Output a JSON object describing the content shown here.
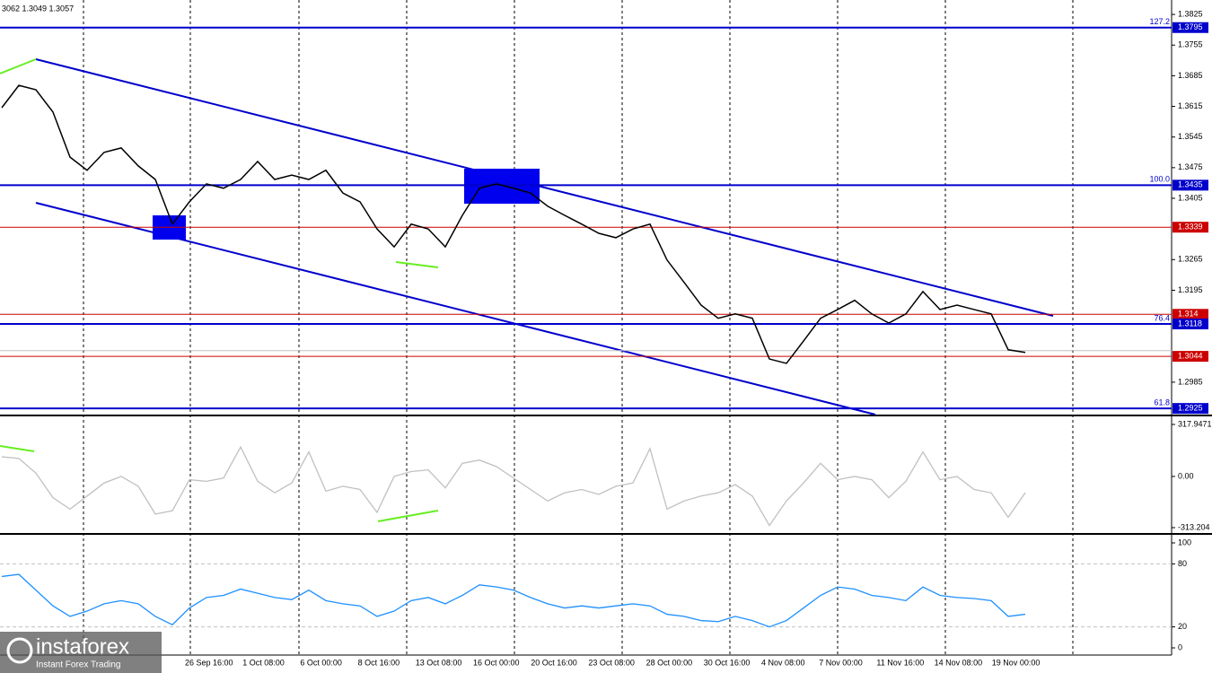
{
  "header_text": "3062 1.3049 1.3057",
  "branding": {
    "name": "instaforex",
    "tagline": "Instant Forex Trading"
  },
  "chart_data": [
    {
      "type": "line",
      "color": "#000000",
      "values": [
        1.3612,
        1.3663,
        1.3653,
        1.3602,
        1.3499,
        1.3469,
        1.351,
        1.352,
        1.3479,
        1.3448,
        1.3346,
        1.3397,
        1.3438,
        1.3428,
        1.3448,
        1.3489,
        1.3448,
        1.3458,
        1.3448,
        1.3469,
        1.3417,
        1.3397,
        1.3335,
        1.3294,
        1.3346,
        1.3335,
        1.3294,
        1.3366,
        1.3428,
        1.3438,
        1.3428,
        1.3417,
        1.3387,
        1.3366,
        1.3346,
        1.3325,
        1.3315,
        1.3335,
        1.3346,
        1.3264,
        1.3213,
        1.3161,
        1.3131,
        1.3141,
        1.3131,
        1.3038,
        1.3028,
        1.3079,
        1.3131,
        1.3151,
        1.3172,
        1.3141,
        1.312,
        1.3141,
        1.3192,
        1.3151,
        1.3161,
        1.3151,
        1.3141,
        1.3059,
        1.3053
      ],
      "ylim": [
        1.2911,
        1.3858
      ],
      "yticks": [
        1.3825,
        1.3755,
        1.3685,
        1.3615,
        1.3545,
        1.3475,
        1.3405,
        1.3265,
        1.3195,
        1.2985
      ],
      "levels": [
        {
          "value": 1.3795,
          "color": "#0000cc",
          "fib": "127.2"
        },
        {
          "value": 1.3435,
          "color": "#0000cc",
          "fib": "100.0"
        },
        {
          "value": 1.3339,
          "color": "#cc0000"
        },
        {
          "value": 1.314,
          "color": "#cc0000"
        },
        {
          "value": 1.3118,
          "color": "#0000cc",
          "fib": "76.4"
        },
        {
          "value": 1.3044,
          "color": "#cc0000"
        },
        {
          "value": 1.2925,
          "color": "#0000cc",
          "fib": "61.8"
        }
      ],
      "last_price": 1.3057
    },
    {
      "type": "line",
      "color": "#c0c0c0",
      "values": [
        120,
        110,
        20,
        -130,
        -200,
        -120,
        -40,
        0,
        -60,
        -230,
        -210,
        -20,
        -30,
        -10,
        180,
        -30,
        -100,
        -40,
        150,
        -90,
        -60,
        -80,
        -220,
        0,
        30,
        40,
        -70,
        80,
        100,
        60,
        -10,
        -80,
        -150,
        -100,
        -80,
        -110,
        -60,
        -40,
        170,
        -200,
        -150,
        -120,
        -100,
        -50,
        -120,
        -300,
        -150,
        -40,
        80,
        -20,
        0,
        -20,
        -130,
        -30,
        150,
        -20,
        0,
        -80,
        -100,
        -250,
        -100
      ],
      "ylim": [
        -313.204,
        317.9471
      ],
      "yticks": [
        317.9471,
        {
          "value": 0,
          "label": "0.00"
        },
        -313.204
      ]
    },
    {
      "type": "line",
      "color": "#1e90ff",
      "values": [
        68,
        70,
        55,
        40,
        30,
        35,
        42,
        45,
        42,
        30,
        22,
        38,
        48,
        50,
        56,
        52,
        48,
        46,
        55,
        45,
        42,
        40,
        30,
        35,
        45,
        48,
        42,
        50,
        60,
        58,
        55,
        48,
        42,
        38,
        40,
        38,
        40,
        42,
        40,
        32,
        30,
        26,
        25,
        30,
        26,
        20,
        26,
        38,
        50,
        58,
        56,
        50,
        48,
        45,
        58,
        50,
        48,
        47,
        45,
        30,
        32
      ],
      "ylim": [
        0,
        100
      ],
      "yticks": [
        100,
        80,
        20,
        0
      ],
      "xtick_labels": [
        "26 Sep 16:00",
        "1 Oct 08:00",
        "6 Oct 00:00",
        "8 Oct 16:00",
        "13 Oct 08:00",
        "16 Oct 00:00",
        "20 Oct 16:00",
        "23 Oct 08:00",
        "28 Oct 00:00",
        "30 Oct 16:00",
        "4 Nov 08:00",
        "7 Nov 00:00",
        "11 Nov 16:00",
        "14 Nov 08:00",
        "19 Nov 00:00"
      ]
    }
  ]
}
